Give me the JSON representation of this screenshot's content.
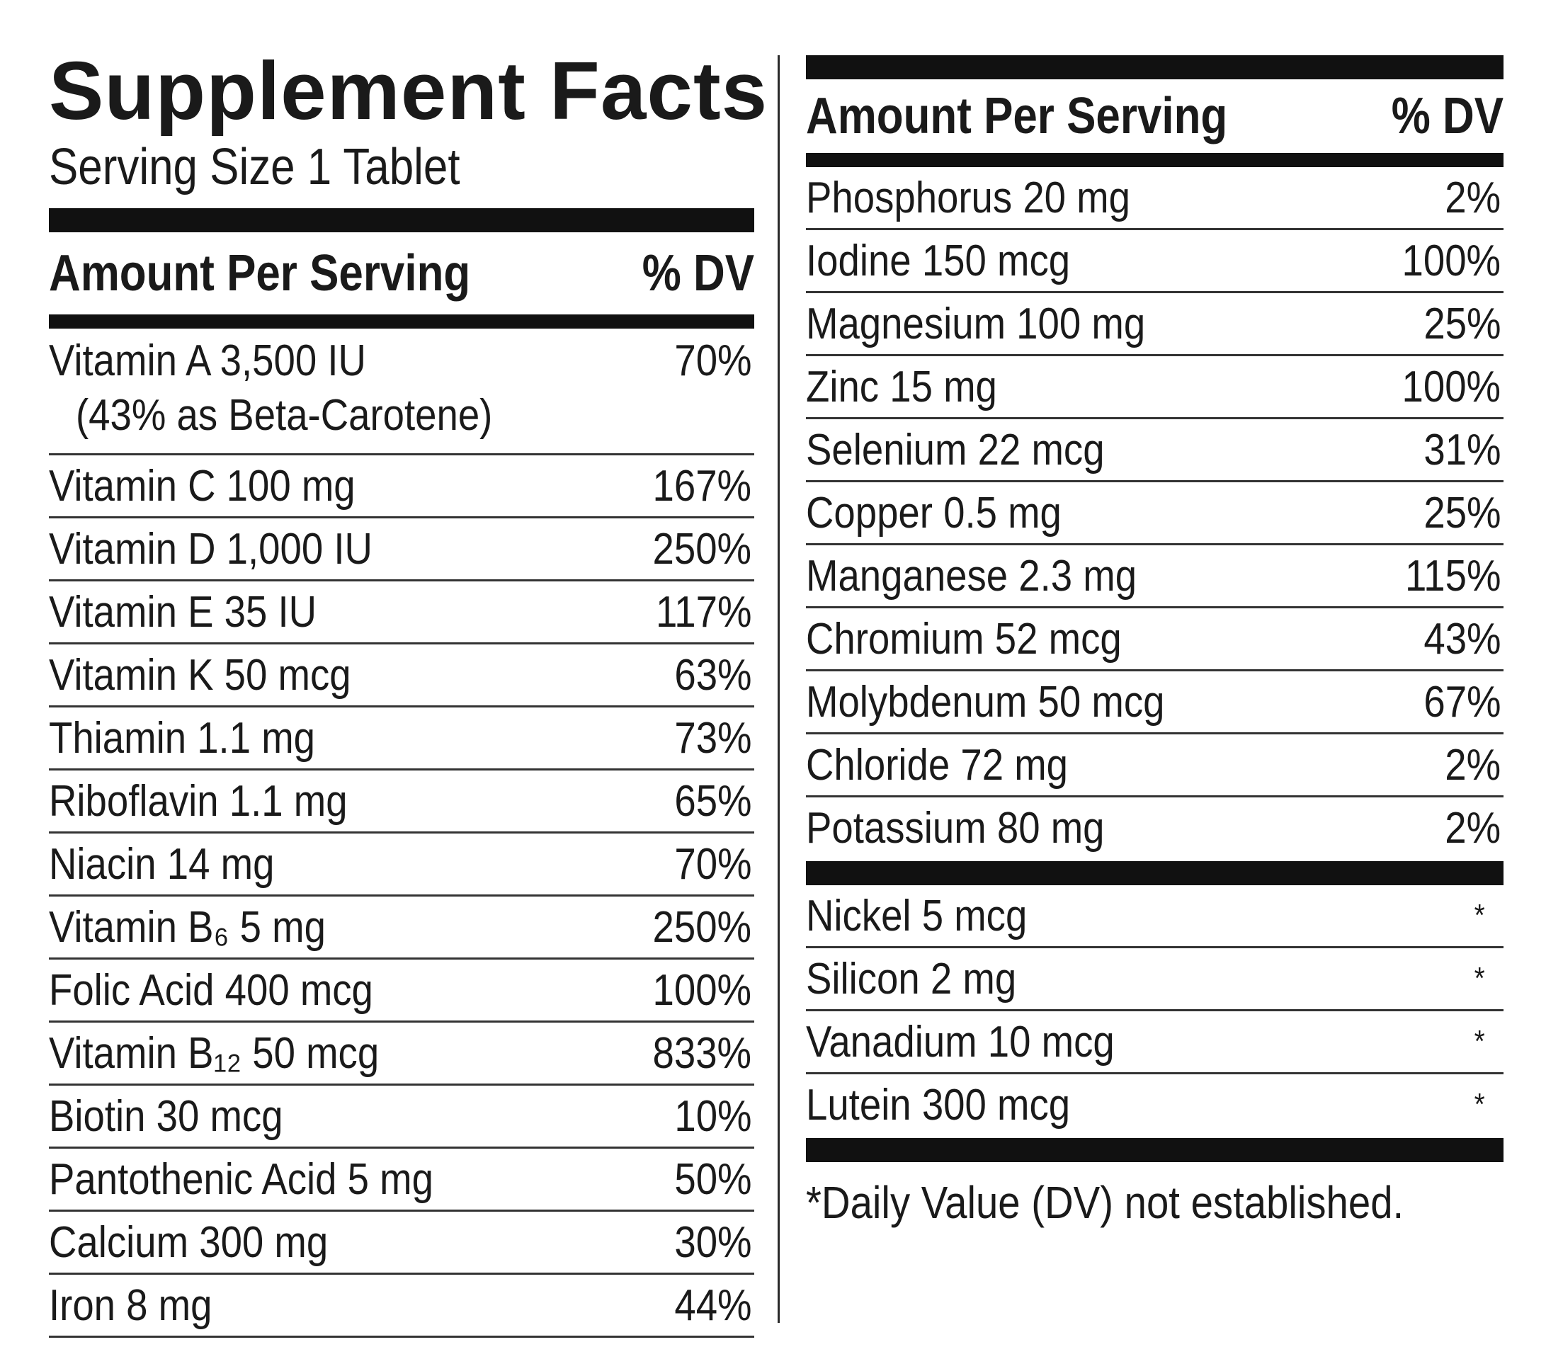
{
  "title": "Supplement Facts",
  "serving_size": "Serving Size 1 Tablet",
  "header": {
    "amount_label": "Amount Per Serving",
    "dv_label": "% DV"
  },
  "left_rows": [
    {
      "name": "Vitamin A 3,500 IU",
      "sub": "(43% as Beta-Carotene)",
      "dv": "70%"
    },
    {
      "name": "Vitamin C 100 mg",
      "dv": "167%"
    },
    {
      "name": "Vitamin D 1,000 IU",
      "dv": "250%"
    },
    {
      "name": "Vitamin E 35 IU",
      "dv": "117%"
    },
    {
      "name": "Vitamin K 50 mcg",
      "dv": "63%"
    },
    {
      "name": "Thiamin 1.1 mg",
      "dv": "73%"
    },
    {
      "name": "Riboflavin 1.1 mg",
      "dv": "65%"
    },
    {
      "name": "Niacin 14 mg",
      "dv": "70%"
    },
    {
      "name": "Vitamin B₆ 5 mg",
      "dv": "250%"
    },
    {
      "name": "Folic Acid 400 mcg",
      "dv": "100%"
    },
    {
      "name": "Vitamin B₁₂ 50 mcg",
      "dv": "833%"
    },
    {
      "name": "Biotin 30 mcg",
      "dv": "10%"
    },
    {
      "name": "Pantothenic Acid 5 mg",
      "dv": "50%"
    },
    {
      "name": "Calcium 300 mg",
      "dv": "30%"
    },
    {
      "name": "Iron 8 mg",
      "dv": "44%"
    }
  ],
  "right_rows": [
    {
      "name": "Phosphorus 20 mg",
      "dv": "2%"
    },
    {
      "name": "Iodine 150 mcg",
      "dv": "100%"
    },
    {
      "name": "Magnesium 100 mg",
      "dv": "25%"
    },
    {
      "name": "Zinc 15 mg",
      "dv": "100%"
    },
    {
      "name": "Selenium 22 mcg",
      "dv": "31%"
    },
    {
      "name": "Copper 0.5 mg",
      "dv": "25%"
    },
    {
      "name": "Manganese 2.3 mg",
      "dv": "115%"
    },
    {
      "name": "Chromium 52 mcg",
      "dv": "43%"
    },
    {
      "name": "Molybdenum 50 mcg",
      "dv": "67%"
    },
    {
      "name": "Chloride 72 mg",
      "dv": "2%"
    },
    {
      "name": "Potassium 80 mg",
      "dv": "2%"
    }
  ],
  "other_rows": [
    {
      "name": "Nickel 5 mcg",
      "dv": "*"
    },
    {
      "name": "Silicon 2 mg",
      "dv": "*"
    },
    {
      "name": "Vanadium 10 mcg",
      "dv": "*"
    },
    {
      "name": "Lutein 300 mcg",
      "dv": "*"
    }
  ],
  "footnote": "*Daily Value (DV) not established."
}
